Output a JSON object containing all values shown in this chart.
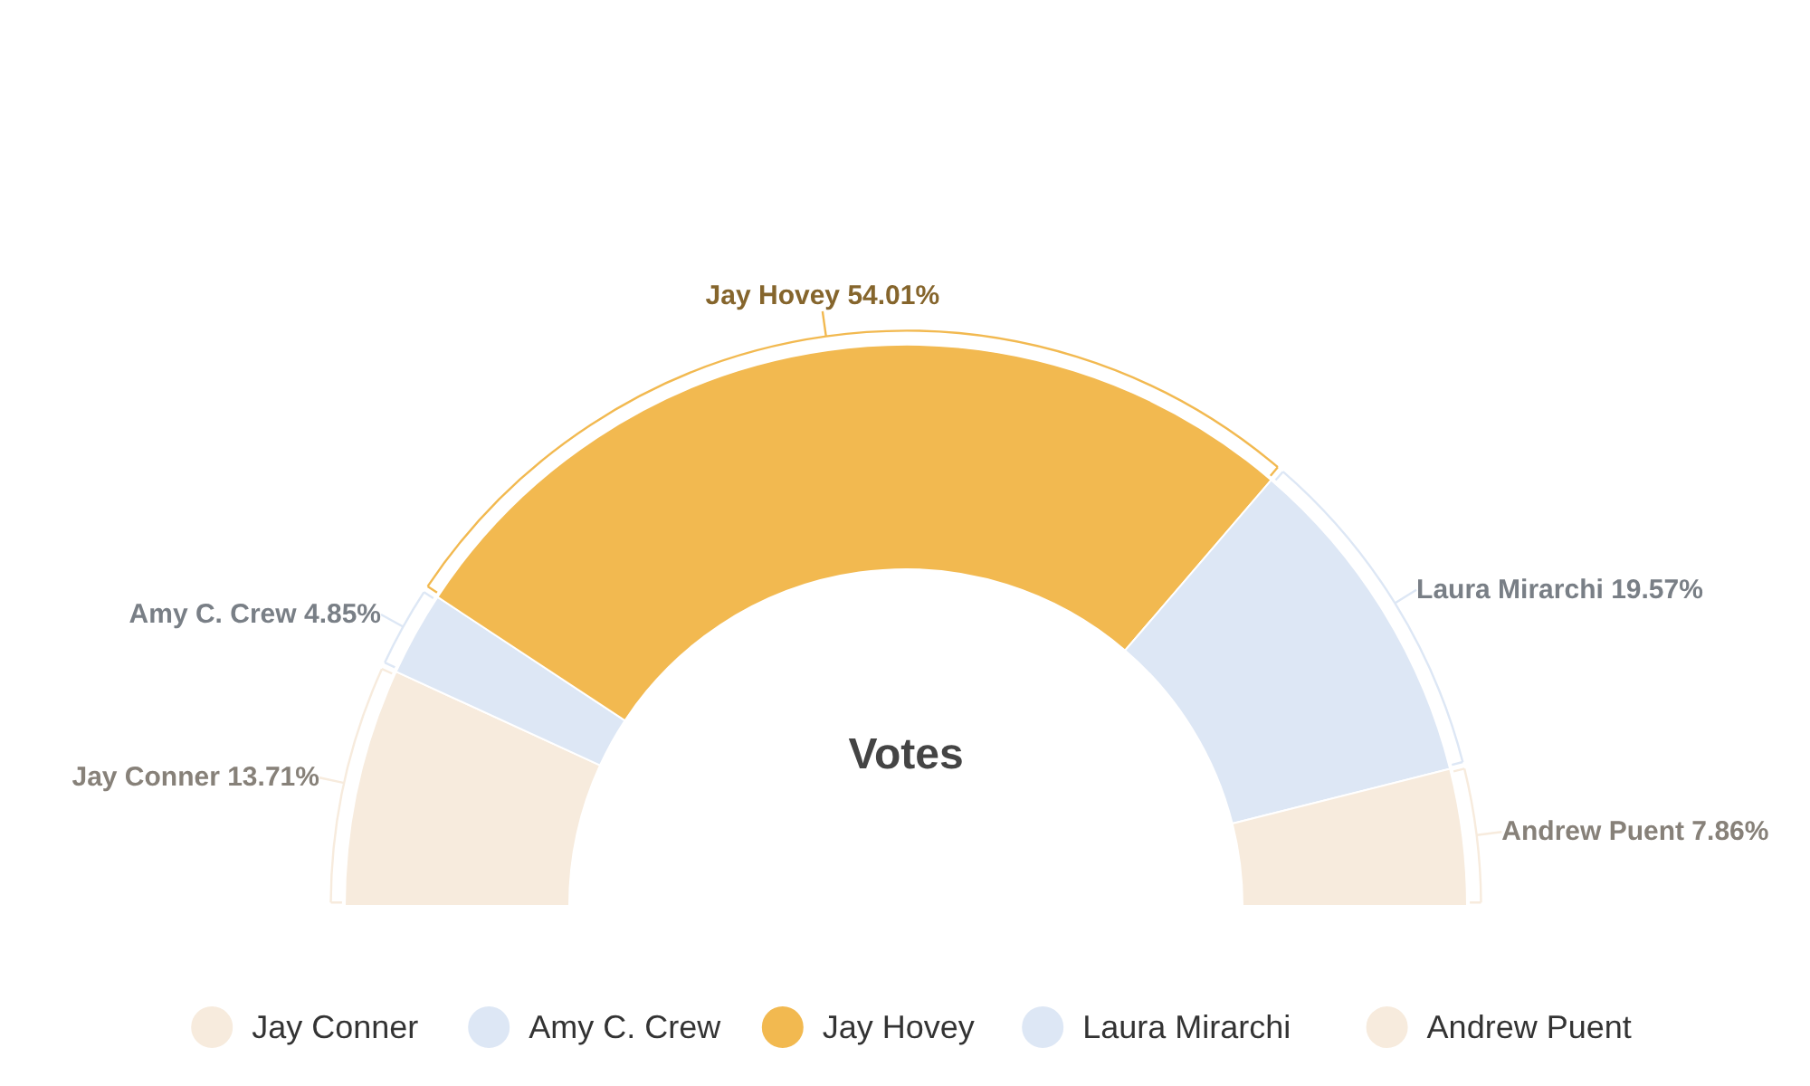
{
  "chart_data": {
    "type": "donut",
    "title": "Votes",
    "categories": [
      "Jay Conner",
      "Amy C. Crew",
      "Jay Hovey",
      "Laura Mirarchi",
      "Andrew Puent"
    ],
    "values": [
      13.71,
      4.85,
      54.01,
      19.57,
      7.86
    ],
    "colors": [
      "#f7ebdd",
      "#dde7f5",
      "#f2b950",
      "#dde7f5",
      "#f7ebdd"
    ],
    "value_labels": [
      "Jay Conner 13.71%",
      "Amy C. Crew 4.85%",
      "Jay Hovey 54.01%",
      "Laura Mirarchi 19.57%",
      "Andrew Puent 7.86%"
    ],
    "legend": "bottom"
  }
}
